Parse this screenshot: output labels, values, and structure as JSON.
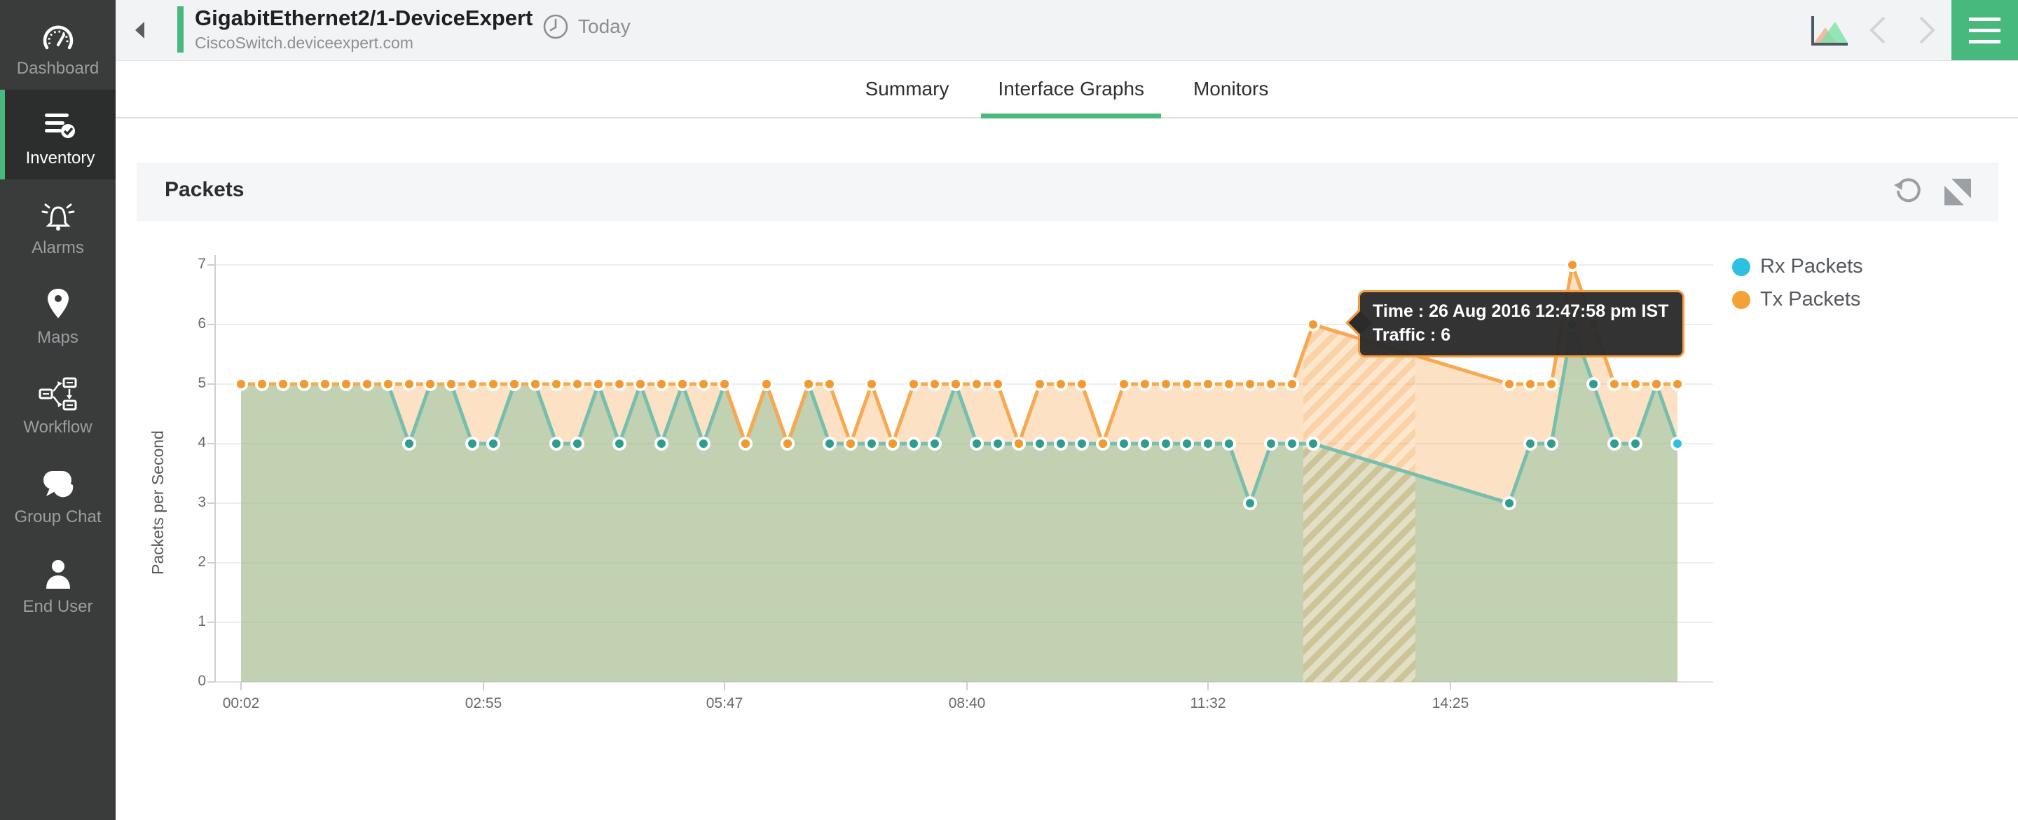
{
  "sidebar": {
    "items": [
      {
        "label": "Dashboard",
        "icon": "gauge-icon",
        "active": false
      },
      {
        "label": "Inventory",
        "icon": "list-check-icon",
        "active": true
      },
      {
        "label": "Alarms",
        "icon": "bell-icon",
        "active": false
      },
      {
        "label": "Maps",
        "icon": "map-pin-icon",
        "active": false
      },
      {
        "label": "Workflow",
        "icon": "workflow-icon",
        "active": false
      },
      {
        "label": "Group Chat",
        "icon": "chat-icon",
        "active": false
      },
      {
        "label": "End User",
        "icon": "person-icon",
        "active": false
      }
    ]
  },
  "header": {
    "title": "GigabitEthernet2/1-DeviceExpert",
    "subtitle": "CiscoSwitch.deviceexpert.com",
    "time_label": "Today",
    "accent_color": "#47b97c"
  },
  "tabs": [
    {
      "label": "Summary",
      "active": false
    },
    {
      "label": "Interface Graphs",
      "active": true
    },
    {
      "label": "Monitors",
      "active": false
    }
  ],
  "panel": {
    "title": "Packets",
    "icons": [
      "refresh-icon",
      "expand-icon"
    ]
  },
  "legend": [
    {
      "label": "Rx Packets",
      "color": "#2cc0e2"
    },
    {
      "label": "Tx Packets",
      "color": "#f6a137"
    }
  ],
  "chart_data": {
    "type": "area",
    "title": "Packets",
    "xlabel": "",
    "ylabel": "Packets per Second",
    "ylim": [
      0,
      7
    ],
    "yticks": [
      0,
      1,
      2,
      3,
      4,
      5,
      6,
      7
    ],
    "grid": "horizontal",
    "legend_position": "right-top",
    "xticks": [
      {
        "label": "00:02",
        "min": 0
      },
      {
        "label": "02:55",
        "min": 173
      },
      {
        "label": "05:47",
        "min": 345
      },
      {
        "label": "08:40",
        "min": 518
      },
      {
        "label": "11:32",
        "min": 690
      },
      {
        "label": "14:25",
        "min": 863
      }
    ],
    "series": [
      {
        "name": "Rx Packets",
        "line_color": "#76bfae",
        "dot_color": "#2f9d8e",
        "last_dot_color": "#2cc0e2",
        "fill_color": "rgba(143,196,162,0.55)"
      },
      {
        "name": "Tx Packets",
        "line_color": "#f8a84f",
        "dot_color": "#f5992e",
        "fill_color": "rgba(245,154,61,0.30)"
      }
    ],
    "points_format": [
      "minutes_since_00:02",
      "rx",
      "tx"
    ],
    "points": [
      [
        0,
        5,
        5
      ],
      [
        15,
        5,
        5
      ],
      [
        30,
        5,
        5
      ],
      [
        45,
        5,
        5
      ],
      [
        60,
        5,
        5
      ],
      [
        75,
        5,
        5
      ],
      [
        90,
        5,
        5
      ],
      [
        105,
        5,
        5
      ],
      [
        120,
        4,
        5
      ],
      [
        135,
        5,
        5
      ],
      [
        150,
        5,
        5
      ],
      [
        165,
        4,
        5
      ],
      [
        180,
        4,
        5
      ],
      [
        195,
        5,
        5
      ],
      [
        210,
        5,
        5
      ],
      [
        225,
        4,
        5
      ],
      [
        240,
        4,
        5
      ],
      [
        255,
        5,
        5
      ],
      [
        270,
        4,
        5
      ],
      [
        285,
        5,
        5
      ],
      [
        300,
        4,
        5
      ],
      [
        315,
        5,
        5
      ],
      [
        330,
        4,
        5
      ],
      [
        345,
        5,
        5
      ],
      [
        360,
        4,
        4
      ],
      [
        375,
        5,
        5
      ],
      [
        390,
        4,
        4
      ],
      [
        405,
        5,
        5
      ],
      [
        420,
        4,
        5
      ],
      [
        435,
        4,
        4
      ],
      [
        450,
        4,
        5
      ],
      [
        465,
        4,
        4
      ],
      [
        480,
        4,
        5
      ],
      [
        495,
        4,
        5
      ],
      [
        510,
        5,
        5
      ],
      [
        525,
        4,
        5
      ],
      [
        540,
        4,
        5
      ],
      [
        555,
        4,
        4
      ],
      [
        570,
        4,
        5
      ],
      [
        585,
        4,
        5
      ],
      [
        600,
        4,
        5
      ],
      [
        615,
        4,
        4
      ],
      [
        630,
        4,
        5
      ],
      [
        645,
        4,
        5
      ],
      [
        660,
        4,
        5
      ],
      [
        675,
        4,
        5
      ],
      [
        690,
        4,
        5
      ],
      [
        705,
        4,
        5
      ],
      [
        720,
        3,
        5
      ],
      [
        735,
        4,
        5
      ],
      [
        750,
        4,
        5
      ],
      [
        765,
        4,
        6
      ],
      [
        905,
        3,
        5
      ],
      [
        920,
        4,
        5
      ],
      [
        935,
        4,
        5
      ],
      [
        950,
        6,
        7
      ],
      [
        965,
        5,
        6
      ],
      [
        980,
        4,
        5
      ],
      [
        995,
        4,
        5
      ],
      [
        1010,
        5,
        5
      ],
      [
        1025,
        4,
        5
      ]
    ],
    "selection_band": {
      "start_min": 758,
      "end_min": 838
    },
    "tooltip": {
      "line1": "Time : 26 Aug 2016 12:47:58 pm IST",
      "line2": "Traffic : 6",
      "anchor_min": 765,
      "anchor_value": 6
    }
  }
}
